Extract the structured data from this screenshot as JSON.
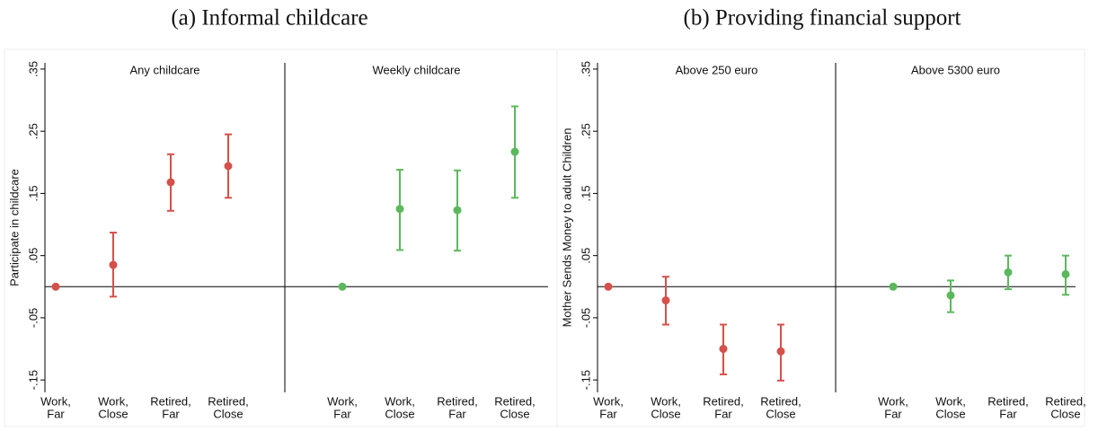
{
  "chart_data": [
    {
      "type": "errorbar",
      "title": "(a) Informal childcare",
      "ylabel": "Participate in childcare",
      "ylim": [
        -0.17,
        0.36
      ],
      "yticks": [
        {
          "value": -0.15,
          "label": "-.15"
        },
        {
          "value": -0.05,
          "label": "-.05"
        },
        {
          "value": 0.05,
          "label": ".05"
        },
        {
          "value": 0.15,
          "label": ".15"
        },
        {
          "value": 0.25,
          "label": ".25"
        },
        {
          "value": 0.35,
          "label": ".35"
        }
      ],
      "panels": [
        {
          "label": "Any childcare",
          "color": "#d6504a",
          "categories": [
            [
              "Work,",
              "Far"
            ],
            [
              "Work,",
              "Close"
            ],
            [
              "Retired,",
              "Far"
            ],
            [
              "Retired,",
              "Close"
            ]
          ],
          "values": [
            0,
            0.035,
            0.168,
            0.194
          ],
          "lower": [
            0,
            -0.016,
            0.122,
            0.143
          ],
          "upper": [
            0,
            0.087,
            0.213,
            0.245
          ]
        },
        {
          "label": "Weekly childcare",
          "color": "#5cb85c",
          "categories": [
            [
              "Work,",
              "Far"
            ],
            [
              "Work,",
              "Close"
            ],
            [
              "Retired,",
              "Far"
            ],
            [
              "Retired,",
              "Close"
            ]
          ],
          "values": [
            0,
            0.125,
            0.123,
            0.217
          ],
          "lower": [
            0,
            0.059,
            0.058,
            0.143
          ],
          "upper": [
            0,
            0.188,
            0.187,
            0.29
          ]
        }
      ]
    },
    {
      "type": "errorbar",
      "title": "(b) Providing financial support",
      "ylabel": "Mother Sends Money to adult Children",
      "ylim": [
        -0.17,
        0.36
      ],
      "yticks": [
        {
          "value": -0.15,
          "label": "-.15"
        },
        {
          "value": -0.05,
          "label": "-.05"
        },
        {
          "value": 0.05,
          "label": ".05"
        },
        {
          "value": 0.15,
          "label": ".15"
        },
        {
          "value": 0.25,
          "label": ".25"
        },
        {
          "value": 0.35,
          "label": ".35"
        }
      ],
      "panels": [
        {
          "label": "Above 250 euro",
          "color": "#d6504a",
          "categories": [
            [
              "Work,",
              "Far"
            ],
            [
              "Work,",
              "Close"
            ],
            [
              "Retired,",
              "Far"
            ],
            [
              "Retired,",
              "Close"
            ]
          ],
          "values": [
            0,
            -0.022,
            -0.1,
            -0.104
          ],
          "lower": [
            0,
            -0.061,
            -0.141,
            -0.151
          ],
          "upper": [
            0,
            0.016,
            -0.061,
            -0.061
          ]
        },
        {
          "label": "Above 5300 euro",
          "color": "#5cb85c",
          "categories": [
            [
              "Work,",
              "Far"
            ],
            [
              "Work,",
              "Close"
            ],
            [
              "Retired,",
              "Far"
            ],
            [
              "Retired,",
              "Close"
            ]
          ],
          "values": [
            0,
            -0.014,
            0.023,
            0.02
          ],
          "lower": [
            0,
            -0.041,
            -0.004,
            -0.013
          ],
          "upper": [
            0,
            0.01,
            0.05,
            0.05
          ]
        }
      ]
    }
  ]
}
